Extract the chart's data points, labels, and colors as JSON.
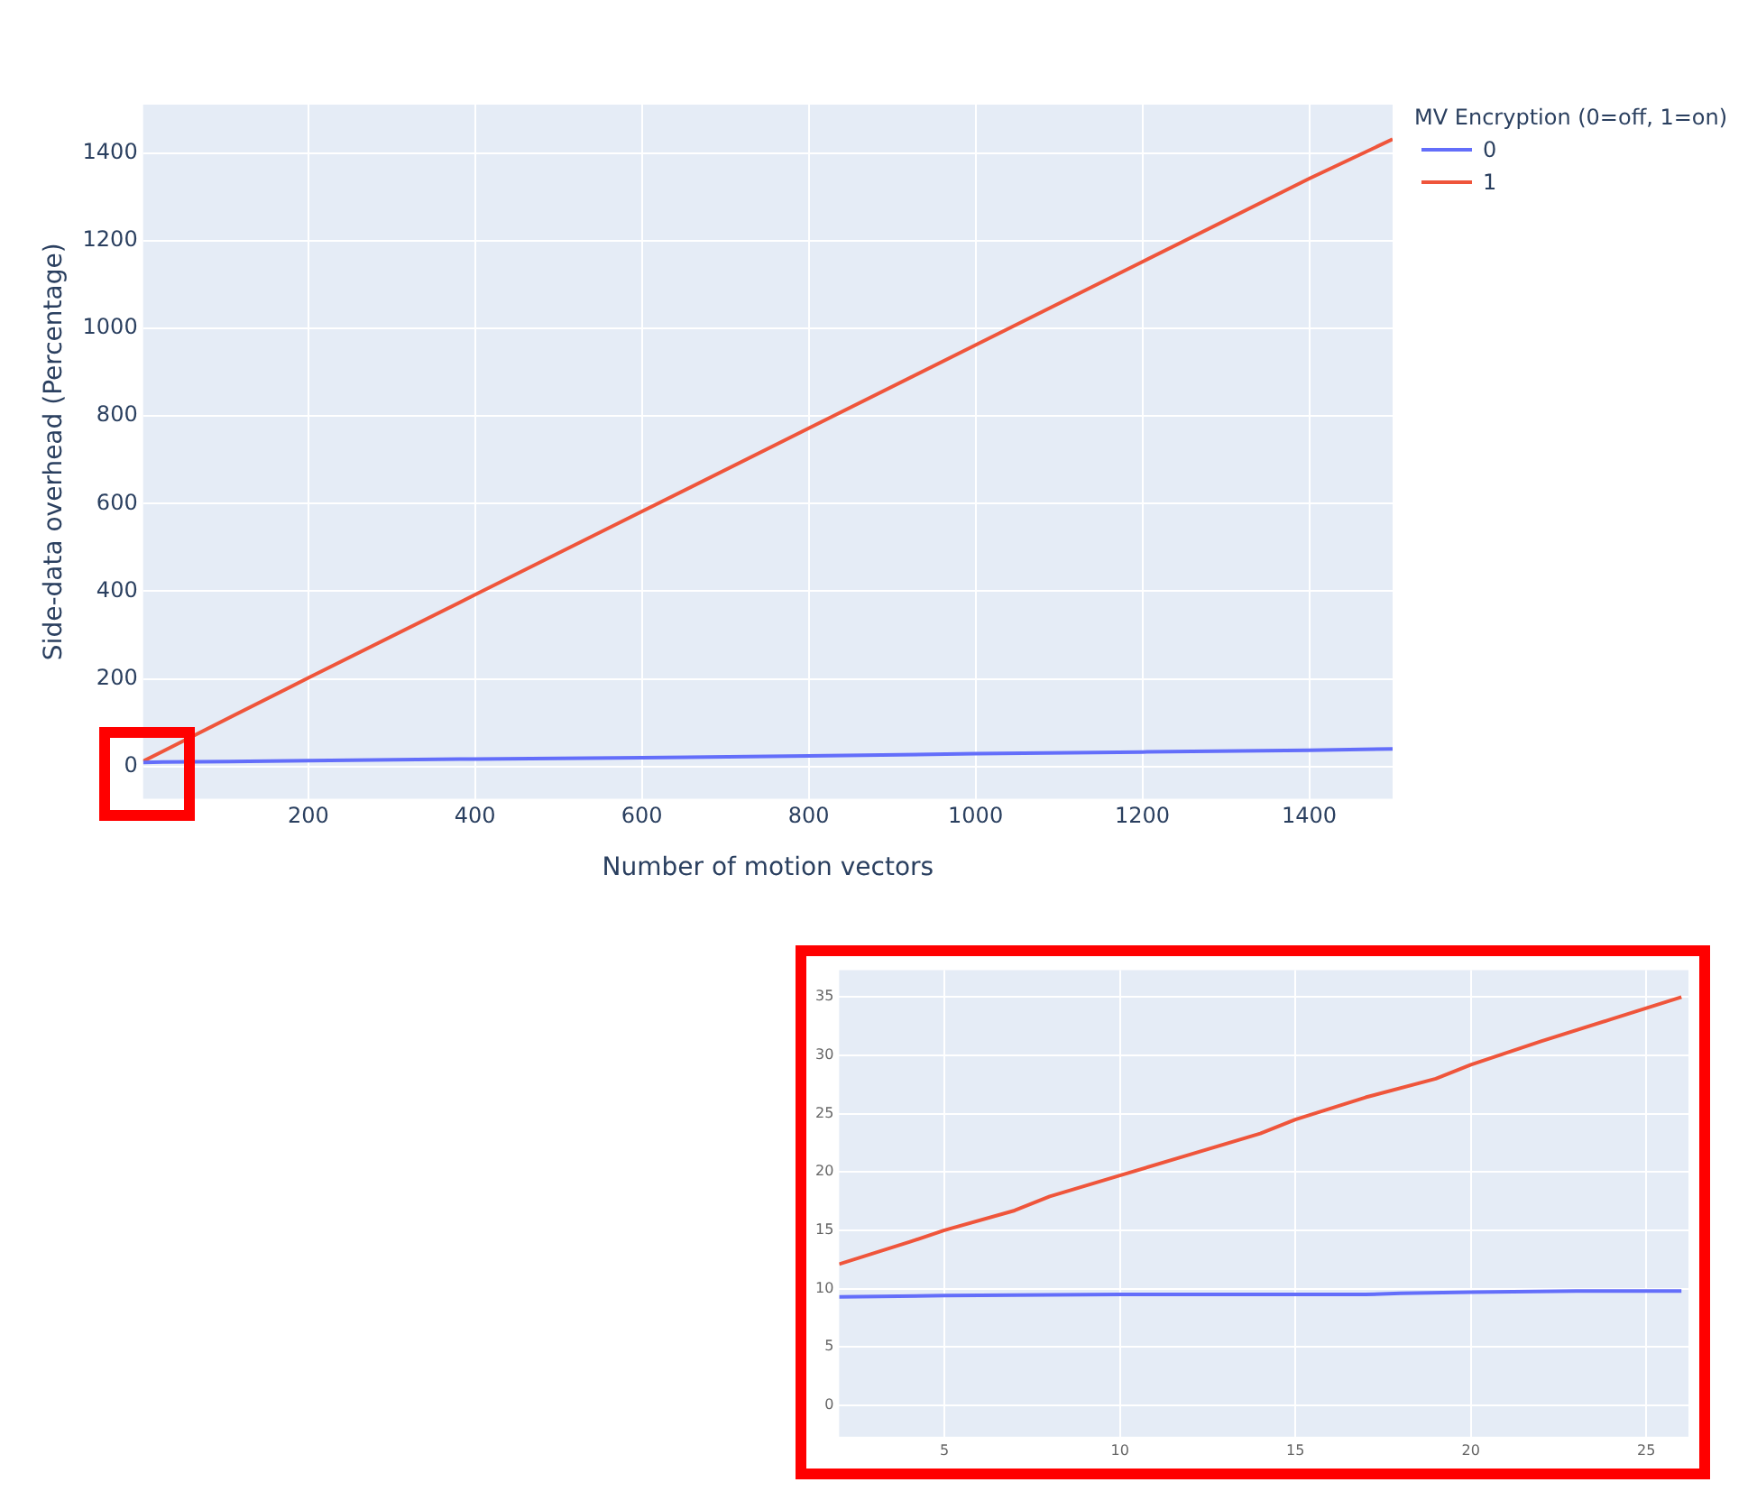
{
  "chart_data": [
    {
      "type": "line",
      "xlabel": "Number of motion vectors",
      "ylabel": "Side-data overhead (Percentage)",
      "legend_title": "MV Encryption (0=off, 1=on)",
      "legend": "top right",
      "grid": true,
      "xlim": [
        2,
        1500
      ],
      "xticks": [
        200,
        400,
        600,
        800,
        1000,
        1200,
        1400
      ],
      "ylim": [
        -74,
        1511
      ],
      "yticks": [
        0,
        200,
        400,
        600,
        800,
        1000,
        1200,
        1400
      ],
      "series": [
        {
          "name": "0",
          "color": "#636efa",
          "x": [
            2,
            26,
            200,
            400,
            600,
            800,
            1000,
            1200,
            1400,
            1500
          ],
          "values": [
            9,
            10,
            13,
            17,
            20,
            24,
            29,
            33,
            37,
            40
          ]
        },
        {
          "name": "1",
          "color": "#ef553b",
          "x": [
            2,
            26,
            200,
            400,
            600,
            800,
            1000,
            1200,
            1400,
            1500
          ],
          "values": [
            12,
            35,
            202,
            392,
            582,
            772,
            962,
            1152,
            1342,
            1432
          ]
        }
      ]
    },
    {
      "type": "line",
      "grid": true,
      "legend": false,
      "xlim": [
        2,
        26.2
      ],
      "xticks": [
        5,
        10,
        15,
        20,
        25
      ],
      "ylim": [
        -2.7,
        37.3
      ],
      "yticks": [
        0,
        5,
        10,
        15,
        20,
        25,
        30,
        35
      ],
      "series": [
        {
          "color": "#636efa",
          "x": [
            2,
            5,
            10,
            14,
            17,
            18,
            20,
            23,
            26
          ],
          "values": [
            9.3,
            9.4,
            9.5,
            9.5,
            9.5,
            9.6,
            9.7,
            9.8,
            9.8
          ]
        },
        {
          "color": "#ef553b",
          "x": [
            2,
            4,
            5,
            7,
            8,
            10,
            12,
            14,
            15,
            17,
            19,
            20,
            22,
            24,
            26
          ],
          "values": [
            12.1,
            14,
            15,
            16.7,
            17.9,
            19.7,
            21.5,
            23.3,
            24.5,
            26.4,
            28,
            29.2,
            31.2,
            33.1,
            35
          ]
        }
      ]
    }
  ]
}
